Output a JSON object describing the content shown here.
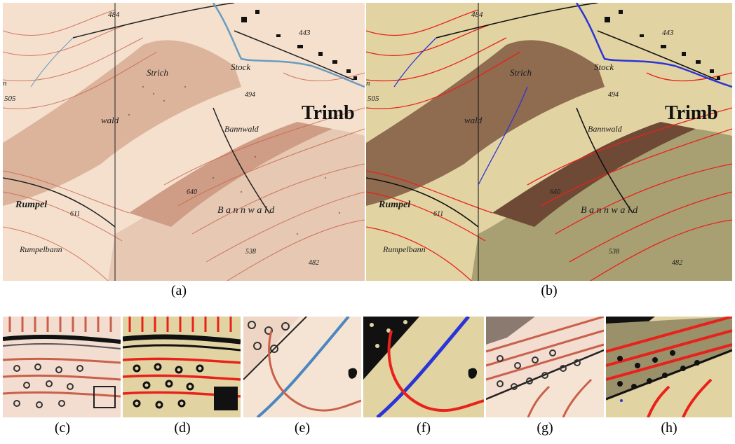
{
  "figure": {
    "captions": {
      "a": "(a)",
      "b": "(b)",
      "c": "(c)",
      "d": "(d)",
      "e": "(e)",
      "f": "(f)",
      "g": "(g)",
      "h": "(h)"
    }
  },
  "map": {
    "labels": {
      "elev_484": "484",
      "elev_443": "443",
      "elev_505": "505",
      "elev_494": "494",
      "elev_640": "640",
      "elev_538": "538",
      "elev_482": "482",
      "town": "Trimb",
      "strick": "Strich",
      "stock": "Stock",
      "wald": "wald",
      "bannwald_small": "Bannwald",
      "bannwald_large": "B a n n w a l d",
      "rumpel": "Rumpel",
      "rumpelbann": "Rumpelbann",
      "elev_611": "611",
      "n_fragment": "n"
    },
    "colors": {
      "original_paper": "#f4e0cd",
      "original_forest": "#d9b39a",
      "original_contour": "#c9604a",
      "original_water": "#6a9bc0",
      "segmented_paper": "#e2d3a3",
      "segmented_forest": "#a3966b",
      "segmented_contour": "#e8221a",
      "segmented_water": "#2b35d6",
      "black_ink": "#111111"
    }
  }
}
